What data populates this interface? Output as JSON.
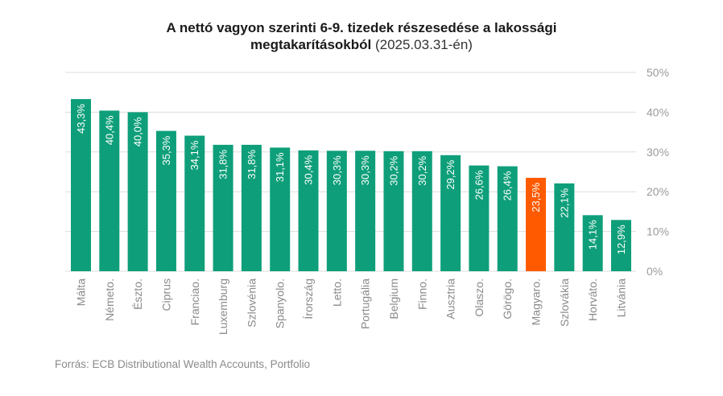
{
  "chart_data": {
    "type": "bar",
    "title_line1": "A nettó vagyon szerinti 6-9. tizedek részesedése a lakossági",
    "title_line2_bold": "megtakarításokból",
    "title_line2_normal": "(2025.03.31-én)",
    "xlabel": "",
    "ylabel": "",
    "ylim": [
      0,
      50
    ],
    "yticks": [
      0,
      10,
      20,
      30,
      40,
      50
    ],
    "ytick_labels": [
      "0%",
      "10%",
      "20%",
      "30%",
      "40%",
      "50%"
    ],
    "yaxis_position": "right",
    "grid": true,
    "categories": [
      "Málta",
      "Németo.",
      "Észto.",
      "Ciprus",
      "Franciao.",
      "Luxemburg",
      "Szlovénia",
      "Spanyolo.",
      "Írország",
      "Letto.",
      "Portugália",
      "Belgium",
      "Finno.",
      "Ausztria",
      "Olaszo.",
      "Görögo.",
      "Magyaro.",
      "Szlovákia",
      "Horváto.",
      "Litvánia"
    ],
    "values": [
      43.3,
      40.4,
      40.0,
      35.3,
      34.1,
      31.8,
      31.8,
      31.1,
      30.4,
      30.3,
      30.3,
      30.2,
      30.2,
      29.2,
      26.6,
      26.4,
      23.5,
      22.1,
      14.1,
      12.9
    ],
    "value_labels": [
      "43,3%",
      "40,4%",
      "40,0%",
      "35,3%",
      "34,1%",
      "31,8%",
      "31,8%",
      "31,1%",
      "30,4%",
      "30,3%",
      "30,3%",
      "30,2%",
      "30,2%",
      "29,2%",
      "26,6%",
      "26,4%",
      "23,5%",
      "22,1%",
      "14,1%",
      "12,9%"
    ],
    "highlight_category": "Magyaro.",
    "colors": {
      "bar": "#0e9f7a",
      "highlight": "#ff5a00",
      "grid": "#dddddd",
      "tick": "#9a9a9a",
      "category": "#8a8a8a"
    }
  },
  "source": "Forrás: ECB Distributional Wealth Accounts, Portfolio"
}
